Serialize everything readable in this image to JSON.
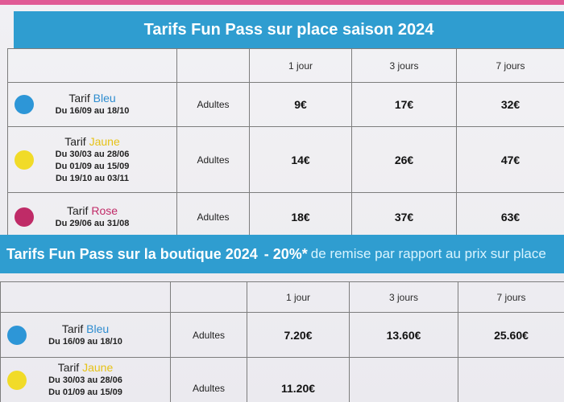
{
  "colors": {
    "banner": "#2f9dd0",
    "blue": "#2d96d7",
    "yellow": "#f1db28",
    "pink": "#bf2b67",
    "grid": "#7d7d7d"
  },
  "section1": {
    "title": "Tarifs Fun Pass sur place saison 2024",
    "headers": [
      "1 jour",
      "3 jours",
      "7 jours"
    ],
    "rows": [
      {
        "color": "blue",
        "tarif_prefix": "Tarif",
        "tarif_name": "Bleu",
        "dates": [
          "Du 16/09 au 18/10"
        ],
        "audience": "Adultes",
        "prices": [
          "9€",
          "17€",
          "32€"
        ]
      },
      {
        "color": "yellow",
        "tarif_prefix": "Tarif",
        "tarif_name": "Jaune",
        "dates": [
          "Du 30/03 au 28/06",
          "Du 01/09 au 15/09",
          "Du 19/10 au 03/11"
        ],
        "audience": "Adultes",
        "prices": [
          "14€",
          "26€",
          "47€"
        ]
      },
      {
        "color": "pink",
        "tarif_prefix": "Tarif",
        "tarif_name": "Rose",
        "dates": [
          "Du 29/06 au 31/08"
        ],
        "audience": "Adultes",
        "prices": [
          "18€",
          "37€",
          "63€"
        ]
      }
    ]
  },
  "section2": {
    "title": "Tarifs Fun Pass sur la boutique 2024",
    "discount": "- 20%*",
    "discount_note": "de remise par rapport au prix sur place",
    "headers": [
      "1 jour",
      "3 jours",
      "7 jours"
    ],
    "rows": [
      {
        "color": "blue",
        "tarif_prefix": "Tarif",
        "tarif_name": "Bleu",
        "dates": [
          "Du 16/09 au 18/10"
        ],
        "audience": "Adultes",
        "prices": [
          "7.20€",
          "13.60€",
          "25.60€"
        ]
      },
      {
        "color": "yellow",
        "tarif_prefix": "Tarif",
        "tarif_name": "Jaune",
        "dates": [
          "Du 30/03 au 28/06",
          "Du 01/09 au 15/09"
        ],
        "audience": "Adultes",
        "prices": [
          "11.20€",
          "",
          ""
        ]
      }
    ]
  }
}
